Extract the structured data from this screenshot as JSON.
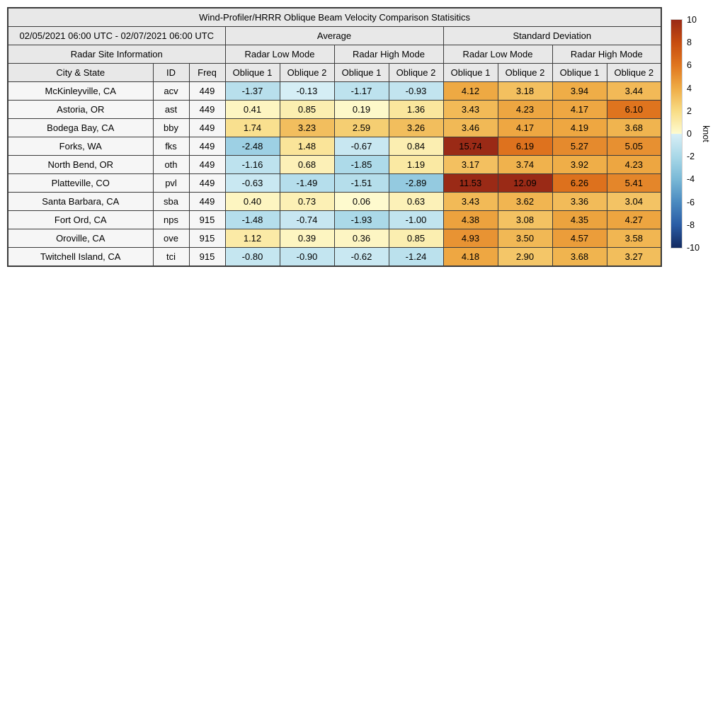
{
  "chart_data": {
    "type": "table",
    "title": "Wind-Profiler/HRRR Oblique Beam Velocity Comparison Statisitics",
    "date_range": "02/05/2021 06:00 UTC - 02/07/2021 06:00 UTC",
    "group_headers": {
      "average": "Average",
      "standard_deviation": "Standard Deviation"
    },
    "subgroup_headers": {
      "site_info": "Radar Site Information",
      "low_mode": "Radar Low Mode",
      "high_mode": "Radar High Mode"
    },
    "column_headers": {
      "city": "City & State",
      "id": "ID",
      "freq": "Freq",
      "oblique1": "Oblique 1",
      "oblique2": "Oblique 2"
    },
    "rows": [
      {
        "city": "McKinleyville, CA",
        "id": "acv",
        "freq": "449",
        "avg": [
          "-1.37",
          "-0.13",
          "-1.17",
          "-0.93"
        ],
        "std": [
          "4.12",
          "3.18",
          "3.94",
          "3.44"
        ]
      },
      {
        "city": "Astoria, OR",
        "id": "ast",
        "freq": "449",
        "avg": [
          "0.41",
          "0.85",
          "0.19",
          "1.36"
        ],
        "std": [
          "3.43",
          "4.23",
          "4.17",
          "6.10"
        ]
      },
      {
        "city": "Bodega Bay, CA",
        "id": "bby",
        "freq": "449",
        "avg": [
          "1.74",
          "3.23",
          "2.59",
          "3.26"
        ],
        "std": [
          "3.46",
          "4.17",
          "4.19",
          "3.68"
        ]
      },
      {
        "city": "Forks, WA",
        "id": "fks",
        "freq": "449",
        "avg": [
          "-2.48",
          "1.48",
          "-0.67",
          "0.84"
        ],
        "std": [
          "15.74",
          "6.19",
          "5.27",
          "5.05"
        ]
      },
      {
        "city": "North Bend, OR",
        "id": "oth",
        "freq": "449",
        "avg": [
          "-1.16",
          "0.68",
          "-1.85",
          "1.19"
        ],
        "std": [
          "3.17",
          "3.74",
          "3.92",
          "4.23"
        ]
      },
      {
        "city": "Platteville, CO",
        "id": "pvl",
        "freq": "449",
        "avg": [
          "-0.63",
          "-1.49",
          "-1.51",
          "-2.89"
        ],
        "std": [
          "11.53",
          "12.09",
          "6.26",
          "5.41"
        ]
      },
      {
        "city": "Santa Barbara, CA",
        "id": "sba",
        "freq": "449",
        "avg": [
          "0.40",
          "0.73",
          "0.06",
          "0.63"
        ],
        "std": [
          "3.43",
          "3.62",
          "3.36",
          "3.04"
        ]
      },
      {
        "city": "Fort Ord, CA",
        "id": "nps",
        "freq": "915",
        "avg": [
          "-1.48",
          "-0.74",
          "-1.93",
          "-1.00"
        ],
        "std": [
          "4.38",
          "3.08",
          "4.35",
          "4.27"
        ]
      },
      {
        "city": "Oroville, CA",
        "id": "ove",
        "freq": "915",
        "avg": [
          "1.12",
          "0.39",
          "0.36",
          "0.85"
        ],
        "std": [
          "4.93",
          "3.50",
          "4.57",
          "3.58"
        ]
      },
      {
        "city": "Twitchell Island, CA",
        "id": "tci",
        "freq": "915",
        "avg": [
          "-0.80",
          "-0.90",
          "-0.62",
          "-1.24"
        ],
        "std": [
          "4.18",
          "2.90",
          "3.68",
          "3.27"
        ]
      }
    ],
    "colorbar": {
      "label": "knot",
      "min": -10,
      "max": 10,
      "ticks": [
        "10",
        "8",
        "6",
        "4",
        "2",
        "0",
        "-2",
        "-4",
        "-6",
        "-8",
        "-10"
      ],
      "gradient_stops": [
        [
          -10,
          "#132A60"
        ],
        [
          -8,
          "#2A5CA5"
        ],
        [
          -6,
          "#4A8AC0"
        ],
        [
          -4,
          "#79B8D6"
        ],
        [
          -2,
          "#A9D8E8"
        ],
        [
          -0.0001,
          "#D8EFF6"
        ],
        [
          0,
          "#FEFBD0"
        ],
        [
          2,
          "#F8DC85"
        ],
        [
          4,
          "#EFAC45"
        ],
        [
          6,
          "#E0761F"
        ],
        [
          8,
          "#C74D10"
        ],
        [
          10,
          "#9A2A16"
        ]
      ]
    },
    "colors": {
      "header_bg": "#E8E8E8",
      "row_label_bg": "#F6F6F6",
      "border": "#3B3B3B",
      "background": "#FFFFFF"
    }
  }
}
